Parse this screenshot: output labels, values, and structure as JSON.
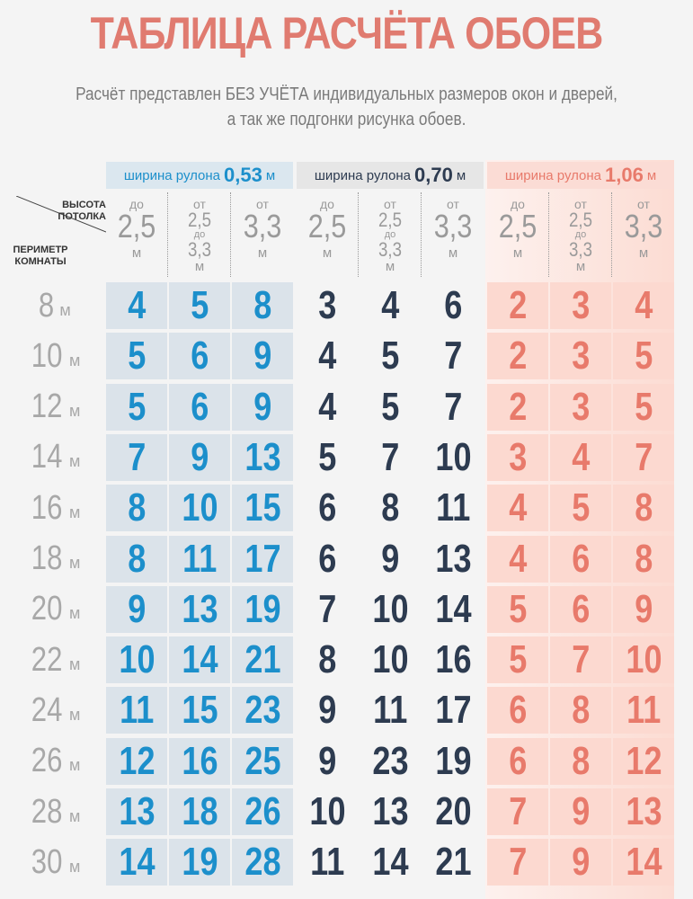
{
  "header": {
    "title": "ТАБЛИЦА РАСЧЁТА ОБОЕВ",
    "subtitle": [
      "Расчёт представлен БЕЗ УЧЁТА индивидуальных размеров окон и дверей,",
      "а так же подгонки рисунка обоев."
    ]
  },
  "table": {
    "corner": {
      "top": "ВЫСОТА ПОТОЛКА",
      "bottom": "ПЕРИМЕТР КОМНАТЫ"
    },
    "groups": [
      {
        "label": "ширина рулона",
        "width": "0,53",
        "unit": "м"
      },
      {
        "label": "ширина рулона",
        "width": "0,70",
        "unit": "м"
      },
      {
        "label": "ширина рулона",
        "width": "1,06",
        "unit": "м"
      }
    ],
    "columns": [
      {
        "prefix": "до",
        "value": "2,5",
        "unit": "м"
      },
      {
        "prefix": "от",
        "value": "2,5",
        "mid": "до",
        "value2": "3,3",
        "unit": "м"
      },
      {
        "prefix": "от",
        "value": "3,3",
        "unit": "м"
      }
    ],
    "rows": [
      {
        "label": "8",
        "unit": "м",
        "values": [
          4,
          5,
          8,
          3,
          4,
          6,
          2,
          3,
          4
        ]
      },
      {
        "label": "10",
        "unit": "м",
        "values": [
          5,
          6,
          9,
          4,
          5,
          7,
          2,
          3,
          5
        ]
      },
      {
        "label": "12",
        "unit": "м",
        "values": [
          5,
          6,
          9,
          4,
          5,
          7,
          2,
          3,
          5
        ]
      },
      {
        "label": "14",
        "unit": "м",
        "values": [
          7,
          9,
          13,
          5,
          7,
          10,
          3,
          4,
          7
        ]
      },
      {
        "label": "16",
        "unit": "м",
        "values": [
          8,
          10,
          15,
          6,
          8,
          11,
          4,
          5,
          8
        ]
      },
      {
        "label": "18",
        "unit": "м",
        "values": [
          8,
          11,
          17,
          6,
          9,
          13,
          4,
          6,
          8
        ]
      },
      {
        "label": "20",
        "unit": "м",
        "values": [
          9,
          13,
          19,
          7,
          10,
          14,
          5,
          6,
          9
        ]
      },
      {
        "label": "22",
        "unit": "м",
        "values": [
          10,
          14,
          21,
          8,
          10,
          16,
          5,
          7,
          10
        ]
      },
      {
        "label": "24",
        "unit": "м",
        "values": [
          11,
          15,
          23,
          9,
          11,
          17,
          6,
          8,
          11
        ]
      },
      {
        "label": "26",
        "unit": "м",
        "values": [
          12,
          16,
          25,
          9,
          23,
          19,
          6,
          8,
          12
        ]
      },
      {
        "label": "28",
        "unit": "м",
        "values": [
          13,
          18,
          26,
          10,
          13,
          20,
          7,
          9,
          13
        ]
      },
      {
        "label": "30",
        "unit": "м",
        "values": [
          14,
          19,
          28,
          11,
          14,
          21,
          7,
          9,
          14
        ]
      }
    ]
  }
}
